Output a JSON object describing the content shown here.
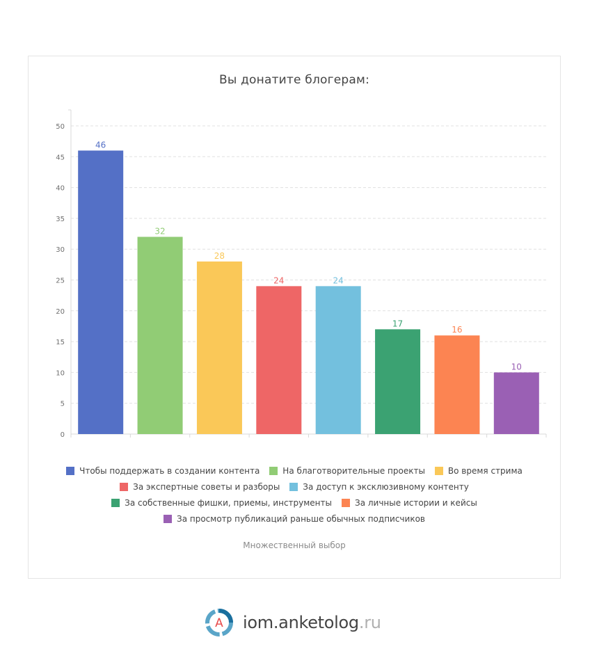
{
  "chart_data": {
    "type": "bar",
    "title": "Вы донатите блогерам:",
    "subtitle": "Множественный выбор",
    "ylim": [
      0,
      50
    ],
    "yticks": [
      0,
      5,
      10,
      15,
      20,
      25,
      30,
      35,
      40,
      45,
      50
    ],
    "grid": true,
    "legend_position": "bottom",
    "categories": [
      "Чтобы поддержать в создании контента",
      "На благотворительные проекты",
      "Во время стрима",
      "За экспертные советы и разборы",
      "За доступ к эксклюзивному контенту",
      "За собственные фишки, приемы, инструменты",
      "За личные истории и кейсы",
      "За просмотр публикаций раньше обычных подписчиков"
    ],
    "values": [
      46,
      32,
      28,
      24,
      24,
      17,
      16,
      10
    ],
    "colors": [
      "#5470c6",
      "#91cc75",
      "#fac858",
      "#ee6666",
      "#73c0de",
      "#3ba272",
      "#fc8452",
      "#9a60b4"
    ],
    "legend_rows": [
      [
        0,
        1,
        2
      ],
      [
        3,
        4
      ],
      [
        5,
        6
      ],
      [
        7
      ]
    ]
  },
  "brand": {
    "name": "iom.anketolog",
    "tld": ".ru",
    "logo_letter": "A",
    "logo_icon": "anketolog-logo-icon"
  }
}
